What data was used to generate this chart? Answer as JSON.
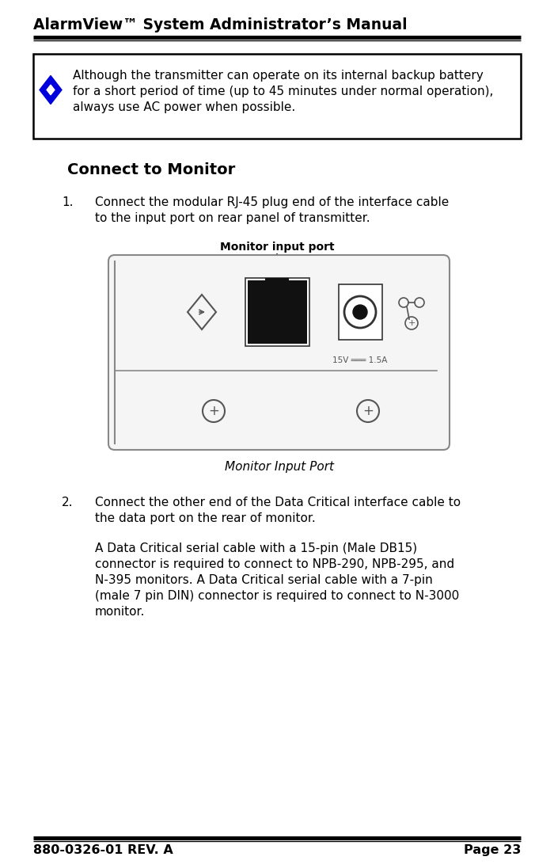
{
  "title": "AlarmView™ System Administrator’s Manual",
  "footer_left": "880-0326-01 REV. A",
  "footer_right": "Page 23",
  "warning_text_line1": "Although the transmitter can operate on its internal backup battery",
  "warning_text_line2": "for a short period of time (up to 45 minutes under normal operation),",
  "warning_text_line3": "always use AC power when possible.",
  "section_title": "Connect to Monitor",
  "step1_line1": "Connect the modular RJ-45 plug end of the interface cable",
  "step1_line2": "to the input port on rear panel of transmitter.",
  "image_caption": "Monitor Input Port",
  "image_label": "Monitor input port",
  "step2_line1": "Connect the other end of the Data Critical interface cable to",
  "step2_line2": "the data port on the rear of monitor.",
  "step2_para_line1": "A Data Critical serial cable with a 15-pin (Male DB15)",
  "step2_para_line2": "connector is required to connect to NPB-290, NPB-295, and",
  "step2_para_line3": "N-395 monitors. A Data Critical serial cable with a 7-pin",
  "step2_para_line4": "(male 7 pin DIN) connector is required to connect to N-3000",
  "step2_para_line5": "monitor.",
  "bg_color": "#ffffff",
  "text_color": "#000000",
  "diamond_color": "#0000dd",
  "fig_width": 7.0,
  "fig_height": 10.96,
  "dpi": 100
}
